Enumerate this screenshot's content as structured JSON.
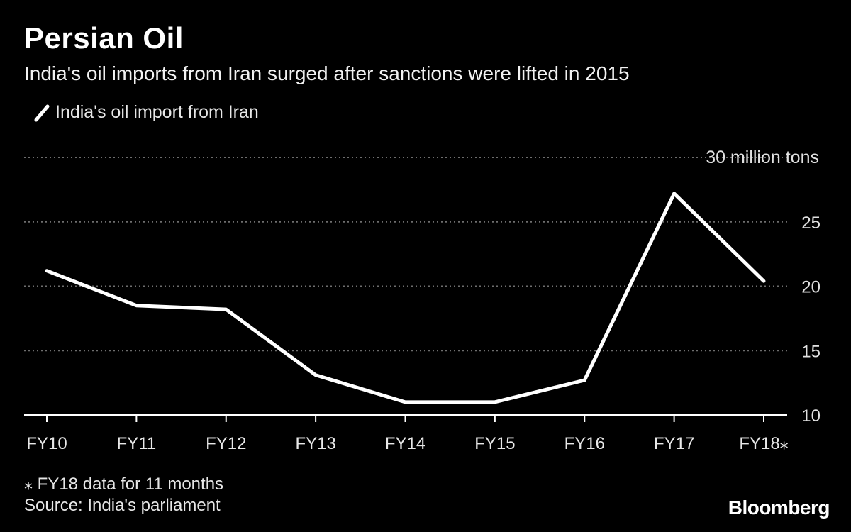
{
  "title": "Persian Oil",
  "subtitle": "India's oil imports from Iran surged after sanctions were lifted in 2015",
  "legend": {
    "label": "India's oil import from Iran"
  },
  "notes": {
    "footnote": "⁎ FY18 data for 11 months",
    "source": "Source: India's parliament"
  },
  "brand": "Bloomberg",
  "chart_data": {
    "type": "line",
    "categories": [
      "FY10",
      "FY11",
      "FY12",
      "FY13",
      "FY14",
      "FY15",
      "FY16",
      "FY17",
      "FY18⁎"
    ],
    "series": [
      {
        "name": "India's oil import from Iran",
        "values": [
          21.2,
          18.5,
          18.2,
          13.1,
          11.0,
          11.0,
          12.7,
          27.2,
          20.4
        ]
      }
    ],
    "ylim": [
      10,
      30
    ],
    "yticks": [
      10,
      15,
      20,
      25,
      30
    ],
    "ytick_labels": [
      "10",
      "15",
      "20",
      "25",
      "30 million tons"
    ],
    "grid": true,
    "colors": {
      "background": "#000000",
      "line": "#ffffff",
      "grid": "#6e6e6e",
      "text": "#ffffff"
    }
  }
}
